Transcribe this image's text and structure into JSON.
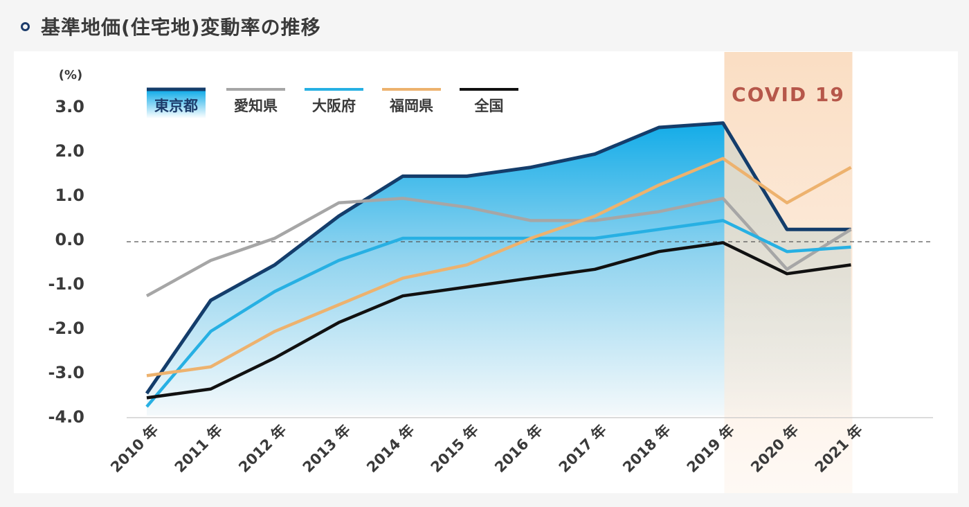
{
  "title": "基準地価(住宅地)変動率の推移",
  "chart_data": {
    "type": "line",
    "ylabel": "(%)",
    "ylim": [
      -4.0,
      3.0
    ],
    "y_ticks": [
      "3.0",
      "2.0",
      "1.0",
      "0.0",
      "-1.0",
      "-2.0",
      "-3.0",
      "-4.0"
    ],
    "y_tick_values": [
      3,
      2,
      1,
      0,
      -1,
      -2,
      -3,
      -4
    ],
    "x_labels": [
      "2010 年",
      "2011 年",
      "2012 年",
      "2013 年",
      "2014 年",
      "2015 年",
      "2016 年",
      "2017 年",
      "2018 年",
      "2019 年",
      "2020 年",
      "2021 年"
    ],
    "x": [
      2010,
      2011,
      2012,
      2013,
      2014,
      2015,
      2016,
      2017,
      2018,
      2019,
      2020,
      2021
    ],
    "reference_line": 0,
    "annotation": {
      "label": "COVID 19",
      "x_from": 2019,
      "x_to": 2021
    },
    "series": [
      {
        "name": "東京都",
        "color": "#143d6b",
        "fill": "gradient-blue",
        "values": [
          -3.5,
          -1.4,
          -0.6,
          0.5,
          1.4,
          1.4,
          1.6,
          1.9,
          2.5,
          2.6,
          0.2,
          0.2
        ]
      },
      {
        "name": "愛知県",
        "color": "#a6a6a6",
        "values": [
          -1.3,
          -0.5,
          0.0,
          0.8,
          0.9,
          0.7,
          0.4,
          0.4,
          0.6,
          0.9,
          -0.7,
          0.2
        ]
      },
      {
        "name": "大阪府",
        "color": "#27b0e3",
        "values": [
          -3.8,
          -2.1,
          -1.2,
          -0.5,
          0.0,
          0.0,
          0.0,
          0.0,
          0.2,
          0.4,
          -0.3,
          -0.2
        ]
      },
      {
        "name": "福岡県",
        "color": "#edb26e",
        "values": [
          -3.1,
          -2.9,
          -2.1,
          -1.5,
          -0.9,
          -0.6,
          0.0,
          0.5,
          1.2,
          1.8,
          0.8,
          1.6
        ]
      },
      {
        "name": "全国",
        "color": "#111111",
        "values": [
          -3.6,
          -3.4,
          -2.7,
          -1.9,
          -1.3,
          -1.1,
          -0.9,
          -0.7,
          -0.3,
          -0.1,
          -0.8,
          -0.6
        ]
      }
    ]
  }
}
